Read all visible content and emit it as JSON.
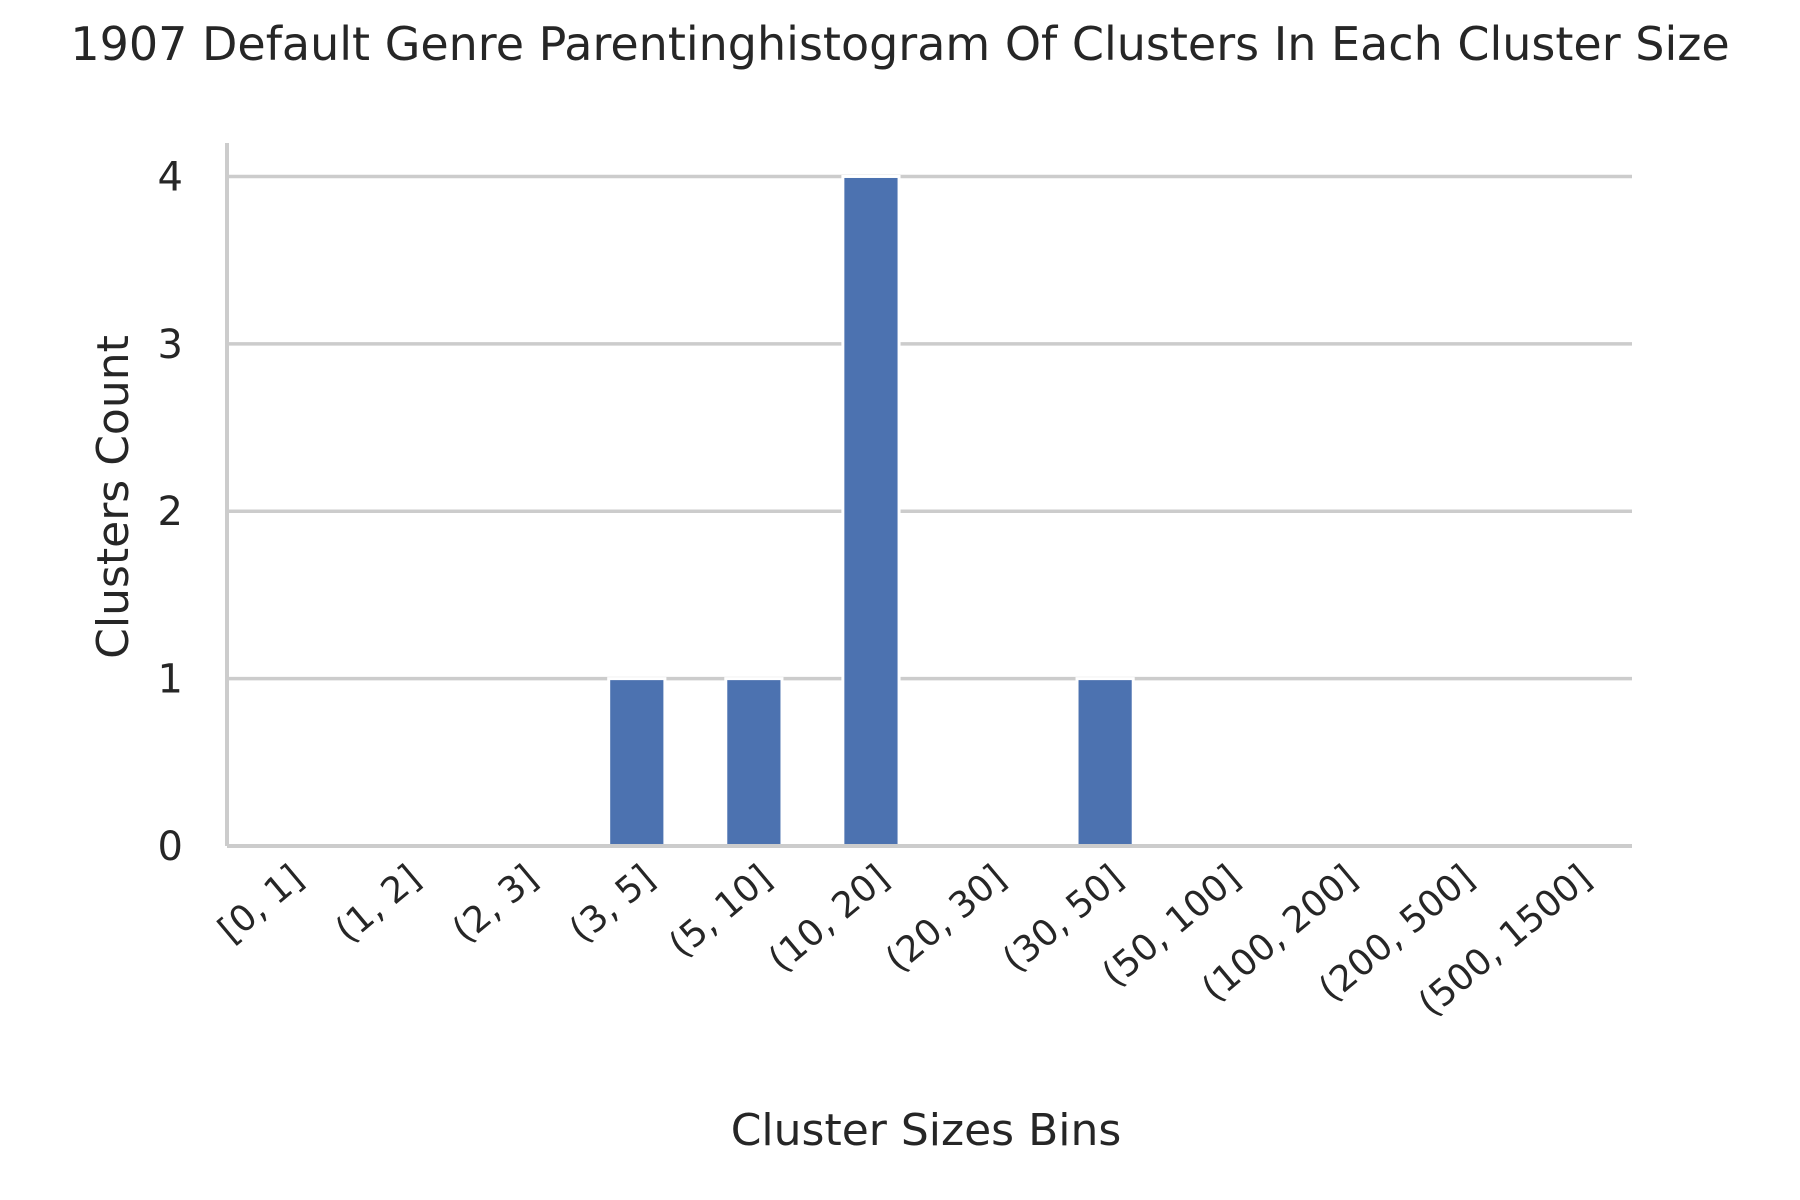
{
  "chart_data": {
    "type": "bar",
    "title": "1907 Default Genre Parentinghistogram Of Clusters In Each Cluster Size",
    "xlabel": "Cluster Sizes Bins",
    "ylabel": "Clusters Count",
    "categories": [
      "[0, 1]",
      "(1, 2]",
      "(2, 3]",
      "(3, 5]",
      "(5, 10]",
      "(10, 20]",
      "(20, 30]",
      "(30, 50]",
      "(50, 100]",
      "(100, 200]",
      "(200, 500]",
      "(500, 1500]"
    ],
    "values": [
      0,
      0,
      0,
      1,
      1,
      4,
      0,
      1,
      0,
      0,
      0,
      0
    ],
    "yticks": [
      0,
      1,
      2,
      3,
      4
    ],
    "ylim": [
      0,
      4.2
    ],
    "grid": "horizontal",
    "legend": "none",
    "bar_color": "#4c72b0"
  }
}
